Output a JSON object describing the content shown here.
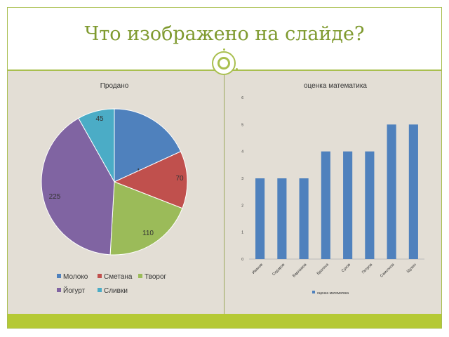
{
  "slide": {
    "title": "Что изображено на слайде?"
  },
  "colors": {
    "accent": "#a9bf4f",
    "title_color": "#7f9a2f",
    "bar_color": "#4f81bd"
  },
  "chart_data": [
    {
      "type": "pie",
      "title": "Продано",
      "categories": [
        "Молоко",
        "Сметана",
        "Творог",
        "Йогурт",
        "Сливки"
      ],
      "values": [
        100,
        70,
        110,
        225,
        45
      ],
      "colors": [
        "#4f81bd",
        "#c0504d",
        "#9bbb59",
        "#8064a2",
        "#4bacc6"
      ],
      "legend_placement": "bottom"
    },
    {
      "type": "bar",
      "title": "оценка математика",
      "categories": [
        "Иванов",
        "Сидоров",
        "Варламов",
        "Брагина",
        "Суков",
        "Петров",
        "Самсонов",
        "Щукин"
      ],
      "series": [
        {
          "name": "оценка математика",
          "values": [
            3,
            3,
            3,
            4,
            4,
            4,
            5,
            5
          ]
        }
      ],
      "ylim": [
        0,
        6
      ],
      "yticks": [
        "0",
        "1",
        "2",
        "3",
        "4",
        "5",
        "6"
      ],
      "grid": false,
      "legend_placement": "bottom"
    }
  ]
}
